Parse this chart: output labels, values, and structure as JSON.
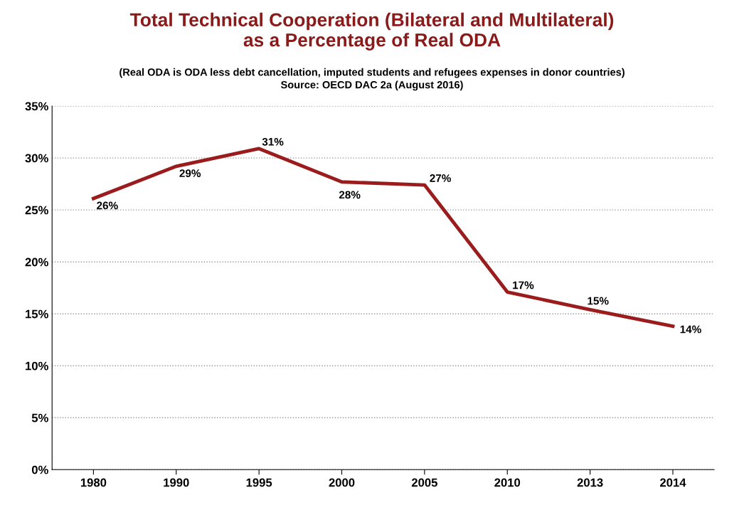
{
  "chart_data": {
    "type": "line",
    "title": "Total Technical Cooperation (Bilateral and Multilateral)\nas a Percentage of Real ODA",
    "subtitle": "(Real ODA is ODA less debt cancellation, imputed students and refugees expenses in donor countries)",
    "annotations": [
      "Source: OECD DAC 2a (August 2016)"
    ],
    "categories": [
      "1980",
      "1990",
      "1995",
      "2000",
      "2005",
      "2010",
      "2013",
      "2014"
    ],
    "series": [
      {
        "color": "#9b1c1c",
        "values": [
          26.1,
          29.2,
          30.9,
          27.7,
          27.4,
          17.1,
          15.4,
          13.8
        ],
        "value_labels": [
          "26%",
          "29%",
          "31%",
          "28%",
          "27%",
          "17%",
          "15%",
          "14%"
        ]
      }
    ],
    "ylim": [
      0,
      35
    ],
    "yticks": [
      {
        "value": 0,
        "label": "0%"
      },
      {
        "value": 5,
        "label": "5%"
      },
      {
        "value": 10,
        "label": "10%"
      },
      {
        "value": 15,
        "label": "15%"
      },
      {
        "value": 20,
        "label": "20%"
      },
      {
        "value": 25,
        "label": "25%"
      },
      {
        "value": 30,
        "label": "30%"
      },
      {
        "value": 35,
        "label": "35%"
      }
    ],
    "grid": "y",
    "marker": "none",
    "line_style": "solid",
    "legend": false
  }
}
